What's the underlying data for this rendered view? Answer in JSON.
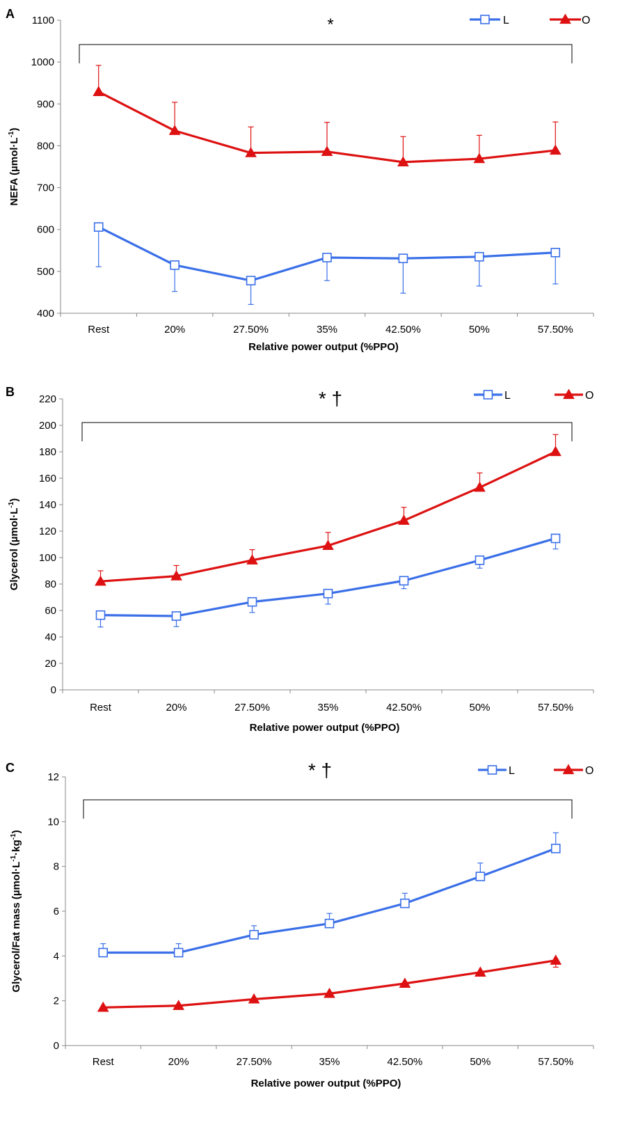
{
  "figure": {
    "background": "#ffffff",
    "axis_color": "#888888"
  },
  "chart_data": [
    {
      "type": "line",
      "panel_label": "A",
      "categories": [
        "Rest",
        "20%",
        "27.50%",
        "35%",
        "42.50%",
        "50%",
        "57.50%"
      ],
      "xlabel": "Relative power output (%PPO)",
      "ylabel": "NEFA (µmol·L",
      "ylabel_sup": "-1",
      "ylabel_end": ")",
      "ylim": [
        400,
        1100
      ],
      "yticks": [
        400,
        500,
        600,
        700,
        800,
        900,
        1000,
        1100
      ],
      "significance": "*",
      "legend_position": "top-right",
      "series": [
        {
          "name": "L",
          "color": "#3a6fe8",
          "marker": "square-open",
          "error_direction": "down",
          "values": [
            606,
            515,
            478,
            533,
            531,
            535,
            545
          ],
          "errors": [
            95,
            63,
            57,
            55,
            83,
            70,
            75
          ]
        },
        {
          "name": "O",
          "color": "#dd1111",
          "marker": "triangle-filled",
          "error_direction": "up",
          "values": [
            929,
            836,
            783,
            786,
            761,
            769,
            789
          ],
          "errors": [
            63,
            68,
            62,
            70,
            61,
            56,
            68
          ]
        }
      ]
    },
    {
      "type": "line",
      "panel_label": "B",
      "categories": [
        "Rest",
        "20%",
        "27.50%",
        "35%",
        "42.50%",
        "50%",
        "57.50%"
      ],
      "xlabel": "Relative power output (%PPO)",
      "ylabel": "Glycerol (µmol·L",
      "ylabel_sup": "-1",
      "ylabel_end": ")",
      "ylim": [
        0,
        220
      ],
      "yticks": [
        0,
        20,
        40,
        60,
        80,
        100,
        120,
        140,
        160,
        180,
        200,
        220
      ],
      "significance": "* †",
      "legend_position": "top-right",
      "series": [
        {
          "name": "L",
          "color": "#3a6fe8",
          "marker": "square-open",
          "error_direction": "down",
          "values": [
            56.5,
            55.8,
            66.5,
            72.8,
            82.5,
            98.0,
            114.5
          ],
          "errors": [
            9,
            8,
            8,
            8,
            6,
            6,
            8
          ]
        },
        {
          "name": "O",
          "color": "#dd1111",
          "marker": "triangle-filled",
          "error_direction": "up",
          "values": [
            82,
            86,
            98,
            109,
            128,
            153,
            180
          ],
          "errors": [
            8,
            8,
            8,
            10,
            10,
            11,
            13
          ]
        }
      ]
    },
    {
      "type": "line",
      "panel_label": "C",
      "categories": [
        "Rest",
        "20%",
        "27.50%",
        "35%",
        "42.50%",
        "50%",
        "57.50%"
      ],
      "xlabel": "Relative power output (%PPO)",
      "ylabel": "Glycerol/Fat mass (µmol·L",
      "ylabel_sup": "-1",
      "ylabel_mid": "·kg",
      "ylabel_sup2": "-1",
      "ylabel_end": ")",
      "ylim": [
        0,
        12
      ],
      "yticks": [
        0,
        2,
        4,
        6,
        8,
        10,
        12
      ],
      "significance": "* †",
      "legend_position": "top-right",
      "series": [
        {
          "name": "L",
          "color": "#3a6fe8",
          "marker": "square-open",
          "error_direction": "up",
          "values": [
            4.15,
            4.15,
            4.95,
            5.45,
            6.35,
            7.55,
            8.8
          ],
          "errors": [
            0.4,
            0.4,
            0.4,
            0.45,
            0.45,
            0.6,
            0.7
          ]
        },
        {
          "name": "O",
          "color": "#dd1111",
          "marker": "triangle-filled",
          "error_direction": "down",
          "values": [
            1.7,
            1.78,
            2.07,
            2.32,
            2.77,
            3.27,
            3.8
          ],
          "errors": [
            0.1,
            0.1,
            0.1,
            0.1,
            0.1,
            0.15,
            0.3
          ]
        }
      ]
    }
  ]
}
